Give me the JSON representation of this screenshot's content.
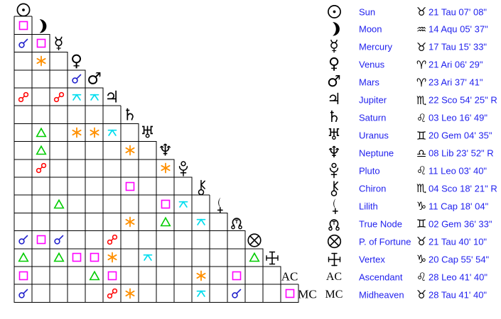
{
  "colors": {
    "background": "#ffffff",
    "grid_line": "#000000",
    "glyph": "#000000",
    "legend_text": "#2222ee"
  },
  "aspect_colors": {
    "conjunction": "#2222cc",
    "opposition": "#ff0000",
    "square": "#ff00ff",
    "trine": "#00cc00",
    "sextile": "#ff9000",
    "quincunx": "#00ddee"
  },
  "glyph_labels": {
    "ac": "AC",
    "mc": "MC"
  },
  "grid": {
    "planets": [
      "sun",
      "moon",
      "mercury",
      "venus",
      "mars",
      "jupiter",
      "saturn",
      "uranus",
      "neptune",
      "pluto",
      "chiron",
      "lilith",
      "truenode",
      "fortune",
      "vertex",
      "ac",
      "mc"
    ],
    "aspects": [
      {
        "a": "moon",
        "b": "sun",
        "type": "square"
      },
      {
        "a": "mercury",
        "b": "sun",
        "type": "conjunction"
      },
      {
        "a": "mercury",
        "b": "moon",
        "type": "square"
      },
      {
        "a": "venus",
        "b": "moon",
        "type": "sextile"
      },
      {
        "a": "mars",
        "b": "venus",
        "type": "conjunction"
      },
      {
        "a": "jupiter",
        "b": "sun",
        "type": "opposition"
      },
      {
        "a": "jupiter",
        "b": "mercury",
        "type": "opposition"
      },
      {
        "a": "jupiter",
        "b": "venus",
        "type": "quincunx"
      },
      {
        "a": "jupiter",
        "b": "mars",
        "type": "quincunx"
      },
      {
        "a": "uranus",
        "b": "moon",
        "type": "trine"
      },
      {
        "a": "uranus",
        "b": "venus",
        "type": "sextile"
      },
      {
        "a": "uranus",
        "b": "mars",
        "type": "sextile"
      },
      {
        "a": "uranus",
        "b": "jupiter",
        "type": "quincunx"
      },
      {
        "a": "neptune",
        "b": "moon",
        "type": "trine"
      },
      {
        "a": "neptune",
        "b": "saturn",
        "type": "sextile"
      },
      {
        "a": "pluto",
        "b": "moon",
        "type": "opposition"
      },
      {
        "a": "pluto",
        "b": "neptune",
        "type": "sextile"
      },
      {
        "a": "chiron",
        "b": "saturn",
        "type": "square"
      },
      {
        "a": "lilith",
        "b": "mercury",
        "type": "trine"
      },
      {
        "a": "lilith",
        "b": "neptune",
        "type": "square"
      },
      {
        "a": "lilith",
        "b": "pluto",
        "type": "quincunx"
      },
      {
        "a": "truenode",
        "b": "saturn",
        "type": "sextile"
      },
      {
        "a": "truenode",
        "b": "neptune",
        "type": "trine"
      },
      {
        "a": "truenode",
        "b": "chiron",
        "type": "quincunx"
      },
      {
        "a": "fortune",
        "b": "sun",
        "type": "conjunction"
      },
      {
        "a": "fortune",
        "b": "moon",
        "type": "square"
      },
      {
        "a": "fortune",
        "b": "mercury",
        "type": "conjunction"
      },
      {
        "a": "fortune",
        "b": "jupiter",
        "type": "opposition"
      },
      {
        "a": "vertex",
        "b": "sun",
        "type": "trine"
      },
      {
        "a": "vertex",
        "b": "mercury",
        "type": "trine"
      },
      {
        "a": "vertex",
        "b": "venus",
        "type": "square"
      },
      {
        "a": "vertex",
        "b": "mars",
        "type": "square"
      },
      {
        "a": "vertex",
        "b": "jupiter",
        "type": "sextile"
      },
      {
        "a": "vertex",
        "b": "uranus",
        "type": "quincunx"
      },
      {
        "a": "vertex",
        "b": "fortune",
        "type": "trine"
      },
      {
        "a": "ac",
        "b": "sun",
        "type": "square"
      },
      {
        "a": "ac",
        "b": "mars",
        "type": "trine"
      },
      {
        "a": "ac",
        "b": "jupiter",
        "type": "square"
      },
      {
        "a": "ac",
        "b": "chiron",
        "type": "sextile"
      },
      {
        "a": "ac",
        "b": "truenode",
        "type": "square"
      },
      {
        "a": "mc",
        "b": "sun",
        "type": "conjunction"
      },
      {
        "a": "mc",
        "b": "jupiter",
        "type": "opposition"
      },
      {
        "a": "mc",
        "b": "saturn",
        "type": "sextile"
      },
      {
        "a": "mc",
        "b": "chiron",
        "type": "quincunx"
      },
      {
        "a": "mc",
        "b": "truenode",
        "type": "conjunction"
      },
      {
        "a": "mc",
        "b": "ac",
        "type": "square"
      }
    ]
  },
  "legend": {
    "rows": [
      {
        "planet": "Sun",
        "glyph": "sun",
        "sign": "taurus",
        "position": "21 Tau 07' 08\""
      },
      {
        "planet": "Moon",
        "glyph": "moon",
        "sign": "aquarius",
        "position": "14 Aqu 05' 37\""
      },
      {
        "planet": "Mercury",
        "glyph": "mercury",
        "sign": "taurus",
        "position": "17 Tau 15' 33\""
      },
      {
        "planet": "Venus",
        "glyph": "venus",
        "sign": "aries",
        "position": "21 Ari 06' 29\""
      },
      {
        "planet": "Mars",
        "glyph": "mars",
        "sign": "aries",
        "position": "23 Ari 37' 41\""
      },
      {
        "planet": "Jupiter",
        "glyph": "jupiter",
        "sign": "scorpio",
        "position": "22 Sco 54' 25\" R"
      },
      {
        "planet": "Saturn",
        "glyph": "saturn",
        "sign": "leo",
        "position": "03 Leo 16' 49\""
      },
      {
        "planet": "Uranus",
        "glyph": "uranus",
        "sign": "gemini",
        "position": "20 Gem 04' 35\""
      },
      {
        "planet": "Neptune",
        "glyph": "neptune",
        "sign": "libra",
        "position": "08 Lib 23' 52\" R"
      },
      {
        "planet": "Pluto",
        "glyph": "pluto",
        "sign": "leo",
        "position": "11 Leo 03' 40\""
      },
      {
        "planet": "Chiron",
        "glyph": "chiron",
        "sign": "scorpio",
        "position": "04 Sco 18' 21\" R"
      },
      {
        "planet": "Lilith",
        "glyph": "lilith",
        "sign": "capricorn",
        "position": "11 Cap 18' 04\""
      },
      {
        "planet": "True Node",
        "glyph": "truenode",
        "sign": "gemini",
        "position": "02 Gem 36' 33\""
      },
      {
        "planet": "P. of Fortune",
        "glyph": "fortune",
        "sign": "taurus",
        "position": "21 Tau 40' 10\""
      },
      {
        "planet": "Vertex",
        "glyph": "vertex",
        "sign": "capricorn",
        "position": "20 Cap 55' 54\""
      },
      {
        "planet": "Ascendant",
        "glyph": "ac",
        "sign": "leo",
        "position": "28 Leo 41' 40\""
      },
      {
        "planet": "Midheaven",
        "glyph": "mc",
        "sign": "taurus",
        "position": "28 Tau 41' 40\""
      }
    ]
  }
}
